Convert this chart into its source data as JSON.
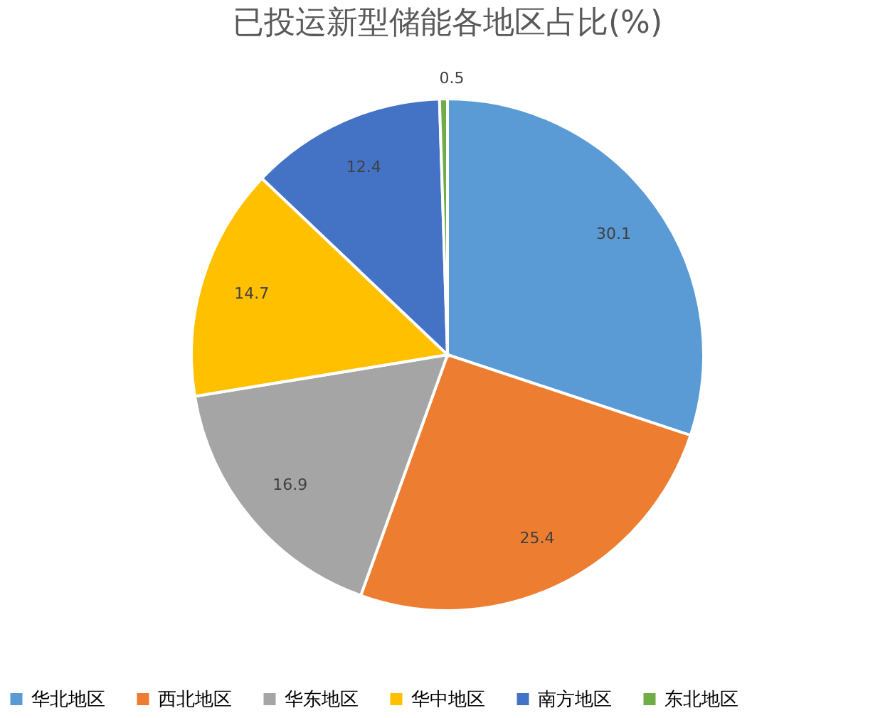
{
  "chart_data": {
    "type": "pie",
    "title": "已投运新型储能各地区占比(%)",
    "categories": [
      "华北地区",
      "西北地区",
      "华东地区",
      "华中地区",
      "南方地区",
      "东北地区"
    ],
    "values": [
      30.1,
      25.4,
      16.9,
      14.7,
      12.4,
      0.5
    ],
    "colors": [
      "#5b9bd5",
      "#ed7d31",
      "#a5a5a5",
      "#ffc000",
      "#4472c4",
      "#70ad47"
    ],
    "data_labels": true,
    "legend": "bottom"
  }
}
